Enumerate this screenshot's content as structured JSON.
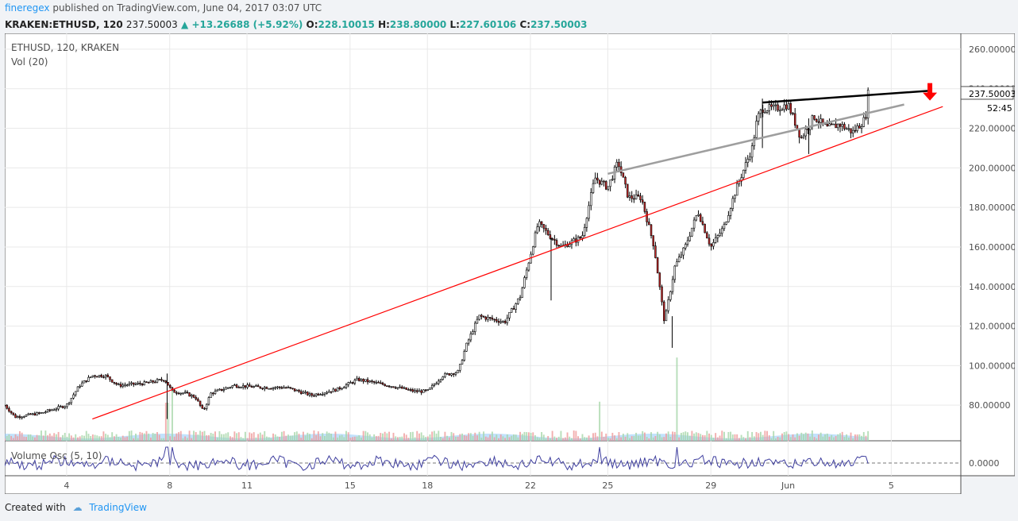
{
  "header": {
    "author": "fineregex",
    "published": "published on TradingView.com, June 04, 2017 03:07 UTC"
  },
  "infobar": {
    "symbol": "KRAKEN:ETHUSD, 120",
    "last": "237.50003",
    "change": "+13.26688 (+5.92%)",
    "o_label": "O:",
    "o": "228.10015",
    "h_label": "H:",
    "h": "238.80000",
    "l_label": "L:",
    "l": "227.60106",
    "c_label": "C:",
    "c": "237.50003"
  },
  "legend": {
    "symbol": "ETHUSD, 120, KRAKEN",
    "vol": "Vol (20)",
    "osc": "Volume Osc (5, 10)"
  },
  "footer": {
    "created_with": "Created with",
    "brand": "TradingView"
  },
  "colors": {
    "up": "#26a69a",
    "down": "#ef5350",
    "candle_body_up": "#ffffff",
    "candle_body_down": "#c62828",
    "trend_red": "#ff0000",
    "resistance_black": "#000000",
    "wedge_gray": "#9e9e9e",
    "osc_line": "#3f3f9f",
    "vol_fill": "#90caf9",
    "grid": "#e9e9e9"
  },
  "chart_data": {
    "type": "candlestick",
    "symbol": "KRAKEN:ETHUSD",
    "interval": "120",
    "ylim": [
      62,
      268
    ],
    "y_ticks": [
      "260.00000",
      "240.00000",
      "220.00000",
      "200.00000",
      "180.00000",
      "160.00000",
      "140.00000",
      "120.00000",
      "100.00000",
      "80.00000"
    ],
    "y_tick_values": [
      260,
      240,
      220,
      200,
      180,
      160,
      140,
      120,
      100,
      80
    ],
    "price_label": "237.50003",
    "countdown_label": "52:45",
    "x_ticks": [
      {
        "label": "4",
        "day": 4
      },
      {
        "label": "8",
        "day": 8
      },
      {
        "label": "11",
        "day": 11
      },
      {
        "label": "15",
        "day": 15
      },
      {
        "label": "18",
        "day": 18
      },
      {
        "label": "22",
        "day": 22
      },
      {
        "label": "25",
        "day": 25
      },
      {
        "label": "29",
        "day": 29
      },
      {
        "label": "Jun",
        "day": 32
      },
      {
        "label": "5",
        "day": 36
      }
    ],
    "xlim_days": [
      1.6,
      38.7
    ],
    "price_path": [
      [
        1.6,
        80
      ],
      [
        2.0,
        74
      ],
      [
        3.0,
        76
      ],
      [
        4.0,
        80
      ],
      [
        4.5,
        90
      ],
      [
        5.0,
        95
      ],
      [
        5.5,
        95
      ],
      [
        6.0,
        90
      ],
      [
        7.0,
        91
      ],
      [
        7.8,
        93
      ],
      [
        8.1,
        87
      ],
      [
        8.6,
        86
      ],
      [
        9.0,
        84
      ],
      [
        9.3,
        77
      ],
      [
        9.6,
        86
      ],
      [
        10.5,
        90
      ],
      [
        11.5,
        89
      ],
      [
        12.5,
        89
      ],
      [
        13.5,
        85
      ],
      [
        14.5,
        88
      ],
      [
        15.3,
        93
      ],
      [
        16.5,
        90
      ],
      [
        17.5,
        87
      ],
      [
        18.0,
        87
      ],
      [
        18.6,
        95
      ],
      [
        19.2,
        97
      ],
      [
        19.5,
        110
      ],
      [
        20.0,
        125
      ],
      [
        21.0,
        122
      ],
      [
        21.6,
        135
      ],
      [
        22.3,
        172
      ],
      [
        22.8,
        165
      ],
      [
        23.2,
        160
      ],
      [
        24.0,
        165
      ],
      [
        24.5,
        195
      ],
      [
        25.0,
        190
      ],
      [
        25.4,
        203
      ],
      [
        25.8,
        185
      ],
      [
        26.3,
        185
      ],
      [
        26.8,
        160
      ],
      [
        27.2,
        122
      ],
      [
        27.6,
        150
      ],
      [
        28.0,
        160
      ],
      [
        28.5,
        178
      ],
      [
        29.0,
        160
      ],
      [
        29.5,
        170
      ],
      [
        30.0,
        190
      ],
      [
        30.3,
        200
      ],
      [
        30.6,
        210
      ],
      [
        30.8,
        225
      ],
      [
        31.0,
        230
      ],
      [
        31.5,
        230
      ],
      [
        32.0,
        232
      ],
      [
        32.5,
        215
      ],
      [
        33.0,
        226
      ],
      [
        33.5,
        220
      ],
      [
        34.0,
        222
      ],
      [
        34.5,
        218
      ],
      [
        34.8,
        222
      ],
      [
        35.0,
        225
      ],
      [
        35.1,
        237.5
      ]
    ],
    "wick_spikes": [
      {
        "day": 7.9,
        "high": 96,
        "low": 73
      },
      {
        "day": 22.8,
        "high": 165,
        "low": 133
      },
      {
        "day": 27.5,
        "high": 125,
        "low": 109
      },
      {
        "day": 31.0,
        "high": 235,
        "low": 210
      },
      {
        "day": 32.8,
        "high": 225,
        "low": 207
      }
    ],
    "trendlines": [
      {
        "name": "red-support",
        "color": "#ff0000",
        "from": [
          5.0,
          73
        ],
        "to": [
          38.0,
          231
        ]
      },
      {
        "name": "gray-upper",
        "color": "#9e9e9e",
        "from": [
          25.0,
          197
        ],
        "to": [
          36.5,
          232
        ]
      },
      {
        "name": "black-resistance",
        "color": "#000000",
        "from": [
          31.0,
          233
        ],
        "to": [
          37.5,
          239
        ]
      }
    ],
    "annotation_arrow": {
      "day": 37.5,
      "price": 234,
      "direction": "down",
      "color": "#ff0000"
    },
    "volume": {
      "label": "Vol (20)",
      "spike_days": [
        7.9,
        8.1,
        24.7,
        27.7
      ]
    },
    "oscillator": {
      "label": "Volume Osc (5, 10)",
      "zero_label": "0.0000"
    }
  }
}
